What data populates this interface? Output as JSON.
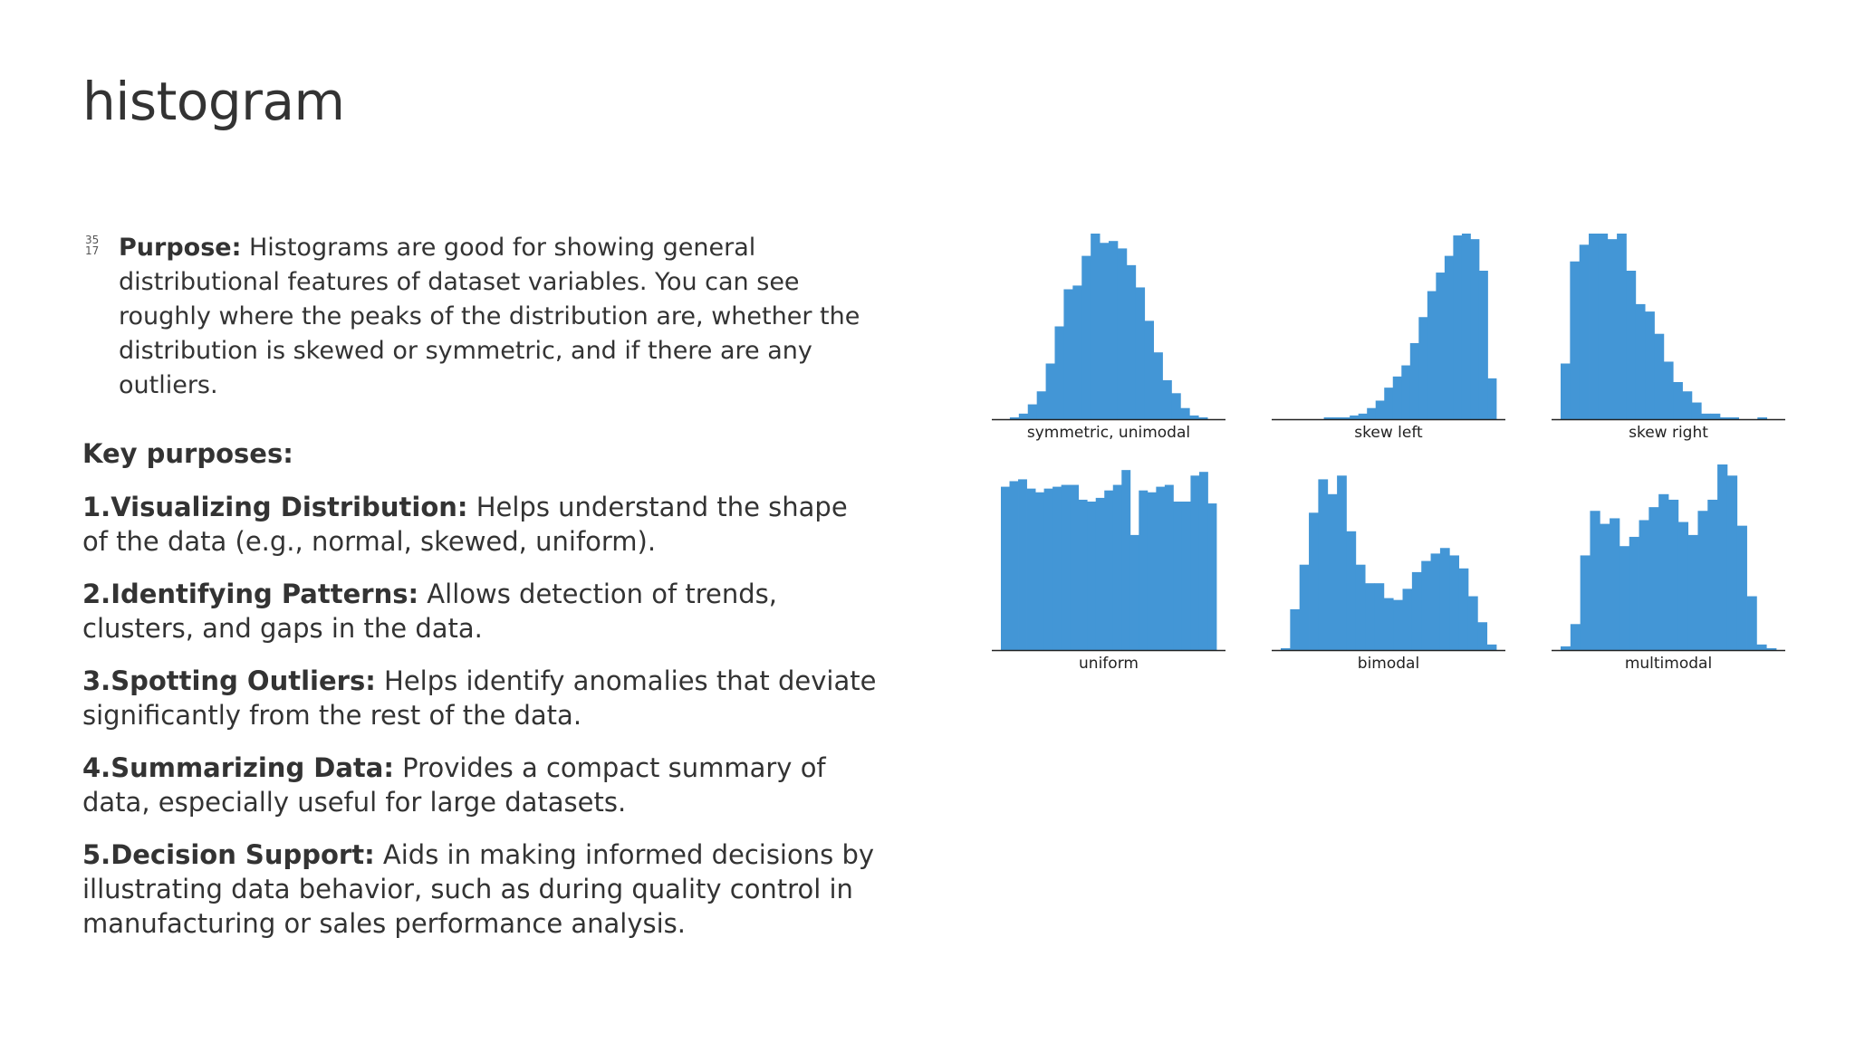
{
  "slide": {
    "title": "histogram",
    "purpose": {
      "bullet_glyph": "35\n17",
      "label": "Purpose:",
      "text": " Histograms are good for showing general distributional features of dataset variables. You can see roughly where the peaks of the distribution are, whether the distribution is skewed or symmetric, and if there are any outliers."
    },
    "key_purposes_heading": "Key purposes:",
    "key_purposes": [
      {
        "label": "1.Visualizing Distribution:",
        "text": " Helps understand the shape of the data (e.g., normal, skewed, uniform)."
      },
      {
        "label": "2.Identifying Patterns:",
        "text": " Allows detection of trends, clusters, and gaps in the data."
      },
      {
        "label": "3.Spotting Outliers:",
        "text": " Helps identify anomalies that deviate significantly from the rest of the data."
      },
      {
        "label": "4.Summarizing Data:",
        "text": " Provides a compact summary of data, especially useful for large datasets."
      },
      {
        "label": "5.Decision Support:",
        "text": " Aids in making informed decisions by illustrating data behavior, such as during quality control in manufacturing or sales performance analysis."
      }
    ]
  },
  "colors": {
    "bar": "#4396d6",
    "axis": "#222222",
    "text": "#333333"
  },
  "chart_data": [
    {
      "type": "bar",
      "xlabel": "symmetric, unimodal",
      "ylim": [
        0,
        100
      ],
      "values": [
        0,
        1,
        3,
        8,
        15,
        30,
        50,
        70,
        72,
        88,
        100,
        95,
        96,
        92,
        83,
        71,
        53,
        36,
        21,
        14,
        6,
        2,
        1,
        0
      ]
    },
    {
      "type": "bar",
      "xlabel": "skew left",
      "ylim": [
        0,
        100
      ],
      "values": [
        0,
        0,
        0,
        0,
        0,
        1,
        1,
        1,
        2,
        3,
        6,
        10,
        17,
        23,
        29,
        41,
        55,
        69,
        79,
        88,
        99,
        100,
        97,
        80,
        22
      ]
    },
    {
      "type": "bar",
      "xlabel": "skew right",
      "ylim": [
        0,
        100
      ],
      "values": [
        30,
        85,
        94,
        100,
        100,
        97,
        100,
        80,
        62,
        58,
        46,
        31,
        20,
        15,
        9,
        3,
        3,
        1,
        1,
        0,
        0,
        1,
        0
      ]
    },
    {
      "type": "bar",
      "xlabel": "uniform",
      "ylim": [
        0,
        100
      ],
      "values": [
        88,
        91,
        92,
        87,
        85,
        87,
        88,
        89,
        89,
        81,
        80,
        82,
        86,
        89,
        97,
        62,
        86,
        85,
        88,
        89,
        80,
        80,
        94,
        96,
        79
      ]
    },
    {
      "type": "bar",
      "xlabel": "bimodal",
      "ylim": [
        0,
        100
      ],
      "values": [
        1,
        22,
        46,
        74,
        92,
        84,
        94,
        64,
        46,
        36,
        36,
        28,
        27,
        33,
        42,
        48,
        52,
        55,
        51,
        44,
        29,
        15,
        3
      ]
    },
    {
      "type": "bar",
      "xlabel": "multimodal",
      "ylim": [
        0,
        100
      ],
      "values": [
        2,
        14,
        51,
        75,
        68,
        71,
        56,
        61,
        70,
        77,
        84,
        81,
        69,
        62,
        75,
        81,
        100,
        94,
        67,
        29,
        3,
        1
      ]
    }
  ]
}
